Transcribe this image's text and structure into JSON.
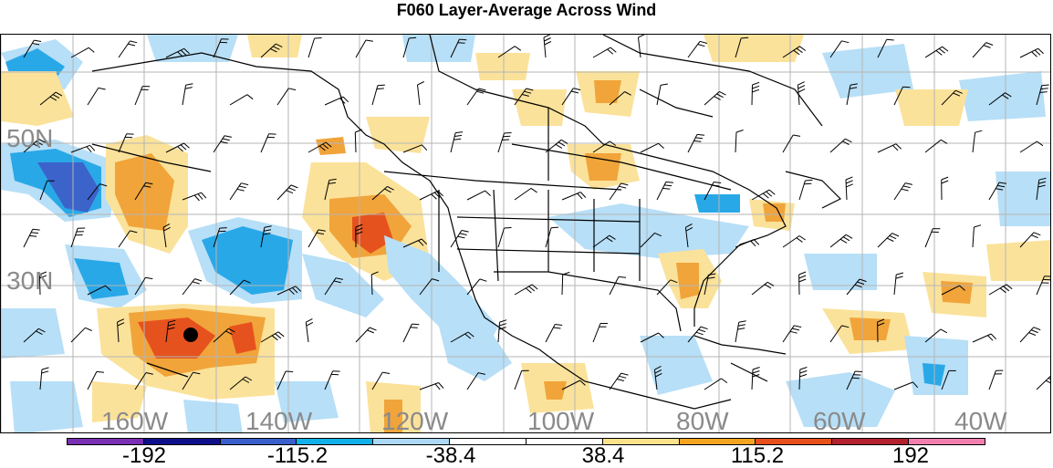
{
  "title": "F060 Layer-Average Across Wind",
  "lat_labels": [
    "50N",
    "30N"
  ],
  "lon_labels": [
    "160W",
    "140W",
    "120W",
    "100W",
    "80W",
    "60W",
    "40W"
  ],
  "colorbar": {
    "labels": [
      "-192",
      "-115.2",
      "-38.4",
      "38.4",
      "115.2",
      "192"
    ],
    "colors": [
      "#7a2fb5",
      "#0f0f8c",
      "#3a5fcd",
      "#12b0ea",
      "#abd9f5",
      "#ffffff",
      "#ffffff",
      "#fbe28b",
      "#f3a51f",
      "#e8501b",
      "#b3212f",
      "#f27fb0"
    ]
  },
  "field_colors": {
    "light_blue": "#b7dff7",
    "blue": "#29a8e8",
    "dark_blue": "#3c63c9",
    "light_orange": "#fbe29a",
    "orange": "#f1a43a",
    "red_orange": "#e6521e",
    "marker": "#000000"
  }
}
